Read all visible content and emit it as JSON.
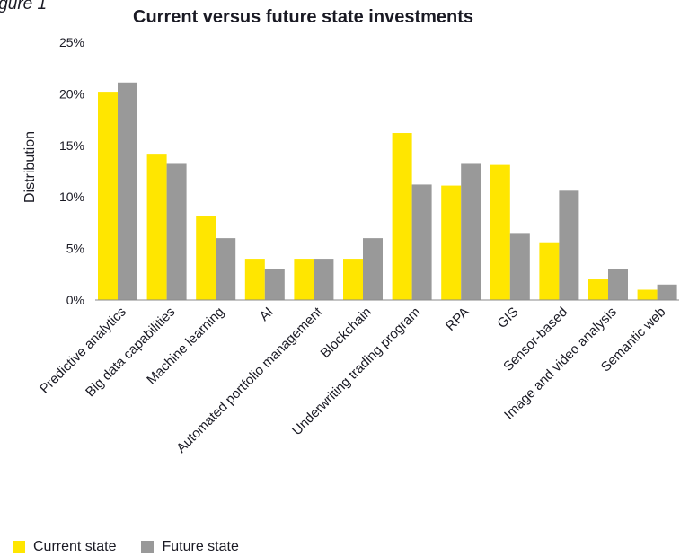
{
  "figure_label": "igure 1",
  "chart_data": {
    "type": "bar",
    "title": "Current versus future state investments",
    "xlabel": "",
    "ylabel": "Distribution",
    "ylim": [
      0,
      25
    ],
    "yticks": [
      "0%",
      "5%",
      "10%",
      "15%",
      "20%",
      "25%"
    ],
    "ytick_values": [
      0,
      5,
      10,
      15,
      20,
      25
    ],
    "categories": [
      "Predictive analytics",
      "Big data capabilities",
      "Machine learning",
      "AI",
      "Automated portfolio management",
      "Blockchain",
      "Underwriting trading program",
      "RPA",
      "GIS",
      "Sensor-based",
      "Image and video analysis",
      "Semantic web"
    ],
    "series": [
      {
        "name": "Current state",
        "color": "#FFE600",
        "values": [
          20.2,
          14.1,
          8.1,
          4.0,
          4.0,
          4.0,
          16.2,
          11.1,
          13.1,
          5.6,
          2.0,
          1.0
        ]
      },
      {
        "name": "Future state",
        "color": "#999999",
        "values": [
          21.1,
          13.2,
          6.0,
          3.0,
          4.0,
          6.0,
          11.2,
          13.2,
          6.5,
          10.6,
          3.0,
          1.5
        ]
      }
    ],
    "grid": false,
    "legend_position": "bottom-left"
  }
}
